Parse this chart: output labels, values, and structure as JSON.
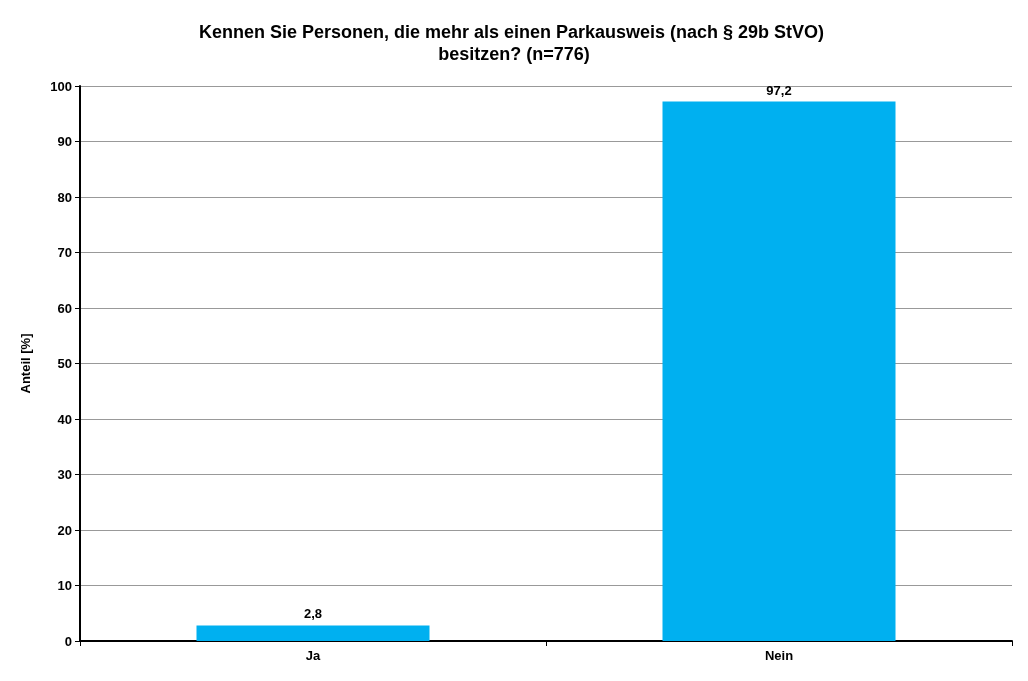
{
  "chart_data": {
    "type": "bar",
    "title": "Kennen Sie Personen, die mehr als einen Parkausweis (nach § 29b StVO) besitzen? (n=776)",
    "ylabel": "Anteil [%]",
    "categories": [
      "Ja",
      "Nein"
    ],
    "values": [
      2.8,
      97.2
    ],
    "value_labels": [
      "2,8",
      "97,2"
    ],
    "color": "#00b0f0",
    "ylim": [
      0,
      100
    ],
    "yticks": [
      0,
      10,
      20,
      30,
      40,
      50,
      60,
      70,
      80,
      90,
      100
    ],
    "grid": "y"
  }
}
